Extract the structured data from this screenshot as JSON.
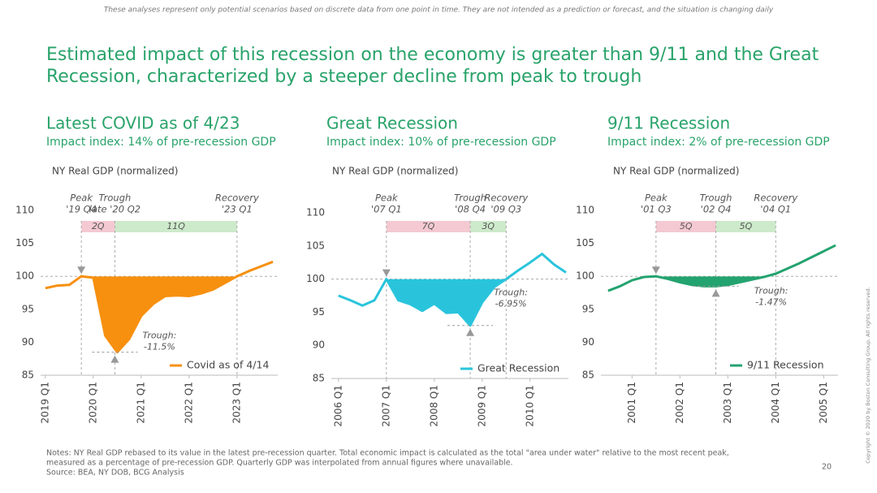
{
  "disclaimer": "These analyses represent only potential scenarios based on discrete data from one point in time. They are not intended as a prediction or forecast, and the situation is changing daily",
  "headline": [
    "Estimated impact of this recession on the economy is greater than 9/11 and the Great",
    "Recession, characterized by a steeper decline from peak to trough"
  ],
  "notes": [
    "Notes: NY Real GDP rebased to its value in the latest pre-recession quarter. Total economic impact is calculated as the total \"area under water\" relative to the most recent peak,",
    "measured as a percentage of pre-recession GDP. Quarterly GDP was interpolated from annual figures where unavailable.",
    "Source: BEA, NY DOB, BCG Analysis"
  ],
  "page_number": "20",
  "copyright": "Copyright © 2020 by Boston Consulting Group. All rights reserved.",
  "chart_data": [
    {
      "type": "line",
      "title": "Latest COVID as of 4/23",
      "subtitle": "Impact index: 14% of pre-recession GDP",
      "y_label": "NY Real GDP (normalized)",
      "x": [
        2019,
        2019.25,
        2019.5,
        2019.75,
        2020,
        2020.25,
        2020.5,
        2020.75,
        2021,
        2021.25,
        2021.5,
        2021.75,
        2022,
        2022.25,
        2022.5,
        2022.75,
        2023,
        2023.25,
        2023.5,
        2023.75
      ],
      "series": [
        {
          "name": "Covid as of 4/14",
          "color": "#f7900f",
          "values": [
            98.2,
            98.6,
            98.7,
            100,
            99.8,
            91,
            88.5,
            90.5,
            94,
            95.8,
            97,
            97.1,
            97,
            97.4,
            98,
            99,
            100,
            100.8,
            101.5,
            102.2
          ]
        }
      ],
      "xlim": [
        2018.9,
        2023.85
      ],
      "ylim": [
        85,
        110
      ],
      "xticks": [
        {
          "value": 2019,
          "label": "2019 Q1"
        },
        {
          "value": 2020,
          "label": "2020 Q1"
        },
        {
          "value": 2021,
          "label": "2021 Q1"
        },
        {
          "value": 2022,
          "label": "2022 Q1"
        },
        {
          "value": 2023,
          "label": "2023 Q1"
        }
      ],
      "yticks": [
        85,
        90,
        95,
        100,
        105,
        110
      ],
      "reference_line": 100,
      "events": [
        {
          "name": "Peak",
          "date": "'19 Q4",
          "x": 2019.75,
          "value": 100
        },
        {
          "name": "Trough",
          "date": "late '20 Q2",
          "x": 2020.45,
          "value": 88.5
        },
        {
          "name": "Recovery",
          "date": "'23 Q1",
          "x": 2023
        }
      ],
      "phases": [
        {
          "label": "2Q",
          "color": "#f4c9d2"
        },
        {
          "label": "11Q",
          "color": "#cdeacb"
        }
      ],
      "trough_note": [
        "Trough:",
        "-11.5%"
      ],
      "legend": "lower right"
    },
    {
      "type": "line",
      "title": "Great Recession",
      "subtitle": "Impact index: 10% of pre-recession GDP",
      "y_label": "NY Real GDP (normalized)",
      "x": [
        2006,
        2006.25,
        2006.5,
        2006.75,
        2007,
        2007.25,
        2007.5,
        2007.75,
        2008,
        2008.25,
        2008.5,
        2008.75,
        2009,
        2009.25,
        2009.5,
        2009.75,
        2010,
        2010.25,
        2010.5,
        2010.75
      ],
      "series": [
        {
          "name": "Great Recession",
          "color": "#29c4dc",
          "values": [
            97.5,
            96.8,
            96,
            96.8,
            100,
            96.8,
            96.2,
            95.2,
            96.3,
            94.9,
            95,
            93,
            96.5,
            98.8,
            100,
            101.3,
            102.5,
            103.8,
            102.2,
            101
          ]
        }
      ],
      "xlim": [
        2005.85,
        2010.8
      ],
      "ylim": [
        85,
        110
      ],
      "xticks": [
        {
          "value": 2006,
          "label": "2006 Q1"
        },
        {
          "value": 2007,
          "label": "2007 Q1"
        },
        {
          "value": 2008,
          "label": "2008 Q1"
        },
        {
          "value": 2009,
          "label": "2009 Q1"
        },
        {
          "value": 2010,
          "label": "2010 Q1"
        }
      ],
      "yticks": [
        85,
        90,
        95,
        100,
        105,
        110
      ],
      "reference_line": 100,
      "events": [
        {
          "name": "Peak",
          "date": "'07 Q1",
          "x": 2007,
          "value": 100
        },
        {
          "name": "Trough",
          "date": "'08 Q4",
          "x": 2008.75,
          "value": 93
        },
        {
          "name": "Recovery",
          "date": "'09 Q3",
          "x": 2009.5
        }
      ],
      "phases": [
        {
          "label": "7Q",
          "color": "#f4c9d2"
        },
        {
          "label": "3Q",
          "color": "#cdeacb"
        }
      ],
      "trough_note": [
        "Trough:",
        "-6.95%"
      ],
      "legend": "lower right"
    },
    {
      "type": "line",
      "title": "9/11 Recession",
      "subtitle": "Impact index: 2% of pre-recession GDP",
      "y_label": "NY Real GDP (normalized)",
      "x": [
        2000.5,
        2000.75,
        2001,
        2001.25,
        2001.5,
        2001.75,
        2002,
        2002.25,
        2002.5,
        2002.75,
        2003,
        2003.25,
        2003.5,
        2003.75,
        2004,
        2004.25,
        2004.5,
        2004.75,
        2005,
        2005.25
      ],
      "series": [
        {
          "name": "9/11 Recession",
          "color": "#23a36f",
          "values": [
            97.8,
            98.5,
            99.4,
            99.9,
            100,
            99.6,
            99.1,
            98.7,
            98.5,
            98.5,
            98.7,
            99.1,
            99.5,
            99.9,
            100.4,
            101.2,
            102,
            102.9,
            103.8,
            104.7
          ]
        }
      ],
      "xlim": [
        2000.35,
        2005.3
      ],
      "ylim": [
        85,
        110
      ],
      "xticks": [
        {
          "value": 2001,
          "label": "2001 Q1"
        },
        {
          "value": 2002,
          "label": "2002 Q1"
        },
        {
          "value": 2003,
          "label": "2003 Q1"
        },
        {
          "value": 2004,
          "label": "2004 Q1"
        },
        {
          "value": 2005,
          "label": "2005 Q1"
        }
      ],
      "yticks": [
        85,
        90,
        95,
        100,
        105,
        110
      ],
      "reference_line": 100,
      "events": [
        {
          "name": "Peak",
          "date": "'01 Q3",
          "x": 2001.5,
          "value": 100
        },
        {
          "name": "Trough",
          "date": "'02 Q4",
          "x": 2002.75,
          "value": 98.5
        },
        {
          "name": "Recovery",
          "date": "'04 Q1",
          "x": 2004
        }
      ],
      "phases": [
        {
          "label": "5Q",
          "color": "#f4c9d2"
        },
        {
          "label": "5Q",
          "color": "#cdeacb"
        }
      ],
      "trough_note": [
        "Trough:",
        "-1.47%"
      ],
      "legend": "lower right"
    }
  ]
}
